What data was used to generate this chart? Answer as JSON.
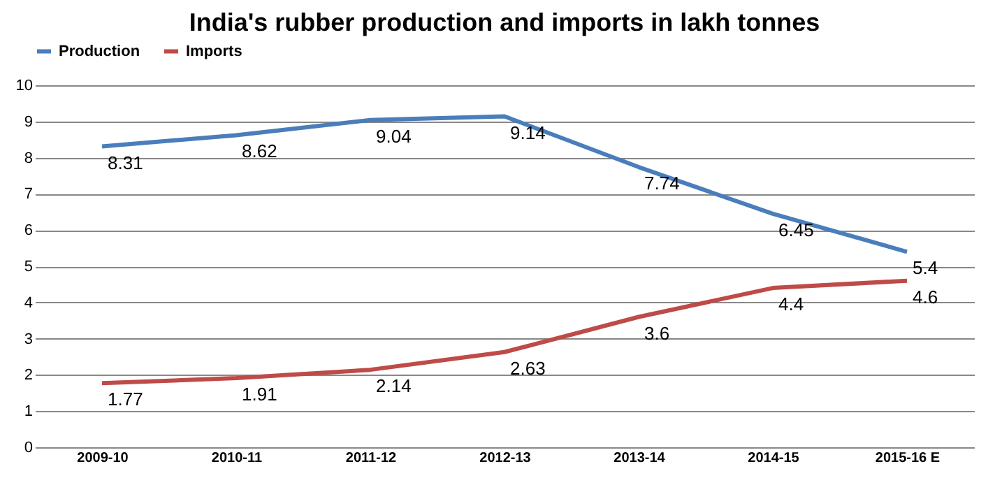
{
  "chart_data": {
    "type": "line",
    "title": "India's rubber production and imports in lakh tonnes",
    "categories": [
      "2009-10",
      "2010-11",
      "2011-12",
      "2012-13",
      "2013-14",
      "2014-15",
      "2015-16 E"
    ],
    "series": [
      {
        "name": "Production",
        "color": "#4a7ebb",
        "values": [
          8.31,
          8.62,
          9.04,
          9.14,
          7.74,
          6.45,
          5.4
        ]
      },
      {
        "name": "Imports",
        "color": "#be4b48",
        "values": [
          1.77,
          1.91,
          2.14,
          2.63,
          3.6,
          4.4,
          4.6
        ]
      }
    ],
    "ylim": [
      0,
      10
    ],
    "yticks": [
      0,
      1,
      2,
      3,
      4,
      5,
      6,
      7,
      8,
      9,
      10
    ],
    "grid": "y",
    "legend": "top",
    "data_labels": true,
    "marker": "none",
    "line_style": "solid"
  }
}
